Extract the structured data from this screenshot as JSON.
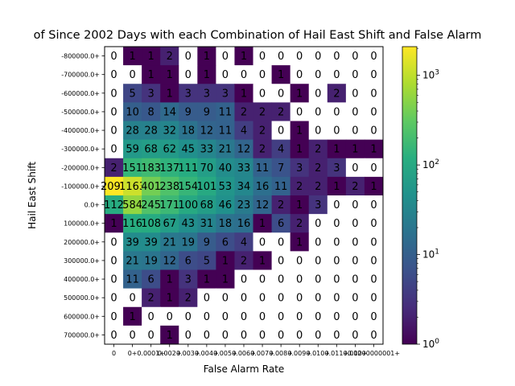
{
  "chart_data": {
    "type": "heatmap",
    "title": "of Since 2002 Days with each Combination of Hail East Shift and False Alarm",
    "xlabel": "False Alarm Rate",
    "ylabel": "Hail East Shift",
    "x_categories": [
      "0",
      "0+",
      "0.0001+",
      "0.002+",
      "0.003+",
      "0.004+",
      "0.005+",
      "0.006+",
      "0.007+",
      "0.008+",
      "0.009+",
      "0.010+",
      "0.011+",
      "0.012+",
      "0.0000000001+"
    ],
    "x_tick_labels": [
      "0",
      "0+",
      "0.0001+",
      "0.002+",
      "0.003+",
      "0.004+",
      "0.005+",
      "0.006+",
      "0.007+",
      "0.008+",
      "0.009+",
      "0.010+",
      "0.011+",
      "0.012+",
      "0.0000000001+"
    ],
    "y_categories": [
      "-800000.0+",
      "-700000.0+",
      "-600000.0+",
      "-500000.0+",
      "-400000.0+",
      "-300000.0+",
      "-200000.0+",
      "-100000.0+",
      "0.0+",
      "100000.0+",
      "200000.0+",
      "300000.0+",
      "400000.0+",
      "500000.0+",
      "600000.0+",
      "700000.0+"
    ],
    "values": [
      [
        0,
        1,
        1,
        2,
        0,
        1,
        0,
        1,
        0,
        0,
        0,
        0,
        0,
        0,
        0
      ],
      [
        0,
        0,
        1,
        1,
        0,
        1,
        0,
        0,
        0,
        1,
        0,
        0,
        0,
        0,
        0
      ],
      [
        0,
        5,
        3,
        1,
        3,
        3,
        3,
        1,
        0,
        0,
        1,
        0,
        2,
        0,
        0
      ],
      [
        0,
        10,
        8,
        14,
        9,
        9,
        11,
        2,
        2,
        2,
        0,
        0,
        0,
        0,
        0
      ],
      [
        0,
        28,
        28,
        32,
        18,
        12,
        11,
        4,
        2,
        0,
        1,
        0,
        0,
        0,
        0
      ],
      [
        0,
        59,
        68,
        62,
        45,
        33,
        21,
        12,
        2,
        4,
        1,
        2,
        1,
        1,
        1
      ],
      [
        2,
        151,
        183,
        137,
        111,
        70,
        40,
        33,
        11,
        7,
        3,
        2,
        3,
        0,
        0
      ],
      [
        2091,
        1163,
        401,
        238,
        154,
        101,
        53,
        34,
        16,
        11,
        2,
        2,
        1,
        2,
        1
      ],
      [
        112,
        584,
        245,
        171,
        100,
        68,
        46,
        23,
        12,
        2,
        1,
        3,
        0,
        0,
        0
      ],
      [
        1,
        116,
        108,
        67,
        43,
        31,
        18,
        16,
        1,
        6,
        2,
        0,
        0,
        0,
        0
      ],
      [
        0,
        39,
        39,
        21,
        19,
        9,
        6,
        4,
        0,
        0,
        1,
        0,
        0,
        0,
        0
      ],
      [
        0,
        21,
        19,
        12,
        6,
        5,
        1,
        2,
        1,
        0,
        0,
        0,
        0,
        0,
        0
      ],
      [
        0,
        11,
        6,
        1,
        3,
        1,
        1,
        0,
        0,
        0,
        0,
        0,
        0,
        0,
        0
      ],
      [
        0,
        0,
        2,
        1,
        2,
        0,
        0,
        0,
        0,
        0,
        0,
        0,
        0,
        0,
        0
      ],
      [
        0,
        1,
        0,
        0,
        0,
        0,
        0,
        0,
        0,
        0,
        0,
        0,
        0,
        0,
        0
      ],
      [
        0,
        0,
        0,
        1,
        0,
        0,
        0,
        0,
        0,
        0,
        0,
        0,
        0,
        0,
        0
      ]
    ],
    "colorbar": {
      "scale": "log",
      "range": [
        1,
        2091
      ],
      "tick_labels": [
        "10^0",
        "10^1",
        "10^2",
        "10^3"
      ],
      "colormap": "viridis"
    },
    "zero_color": "#ffffff"
  }
}
